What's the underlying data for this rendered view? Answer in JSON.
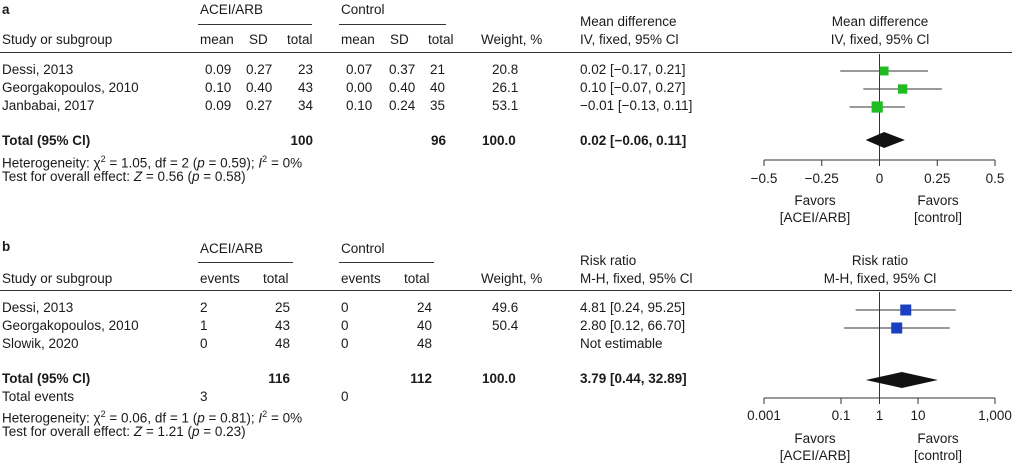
{
  "panels": [
    {
      "letter": "a",
      "group1_label": "ACEI/ARB",
      "group2_label": "Control",
      "study_header": "Study or subgroup",
      "group1_cols": [
        "mean",
        "SD",
        "total"
      ],
      "group2_cols": [
        "mean",
        "SD",
        "total"
      ],
      "weight_header": "Weight, %",
      "effect_header_1": "Mean difference",
      "effect_header_2": "IV, fixed, 95% Cl",
      "plot_header_1": "Mean difference",
      "plot_header_2": "IV, fixed, 95% Cl",
      "studies": [
        {
          "name": "Dessi, 2013",
          "g1": [
            "0.09",
            "0.27",
            "23"
          ],
          "g2": [
            "0.07",
            "0.37",
            "21"
          ],
          "weight": "20.8",
          "effect": "0.02 [−0.17, 0.21]"
        },
        {
          "name": "Georgakopoulos, 2010",
          "g1": [
            "0.10",
            "0.40",
            "43"
          ],
          "g2": [
            "0.00",
            "0.40",
            "40"
          ],
          "weight": "26.1",
          "effect": "0.10 [−0.07, 0.27]"
        },
        {
          "name": "Janbabai, 2017",
          "g1": [
            "0.09",
            "0.27",
            "34"
          ],
          "g2": [
            "0.10",
            "0.24",
            "35"
          ],
          "weight": "53.1",
          "effect": "−0.01 [−0.13, 0.11]"
        }
      ],
      "total": {
        "label": "Total (95% Cl)",
        "g1_total": "100",
        "g2_total": "96",
        "weight": "100.0",
        "effect": "0.02 [−0.06, 0.11]"
      },
      "heterogeneity": {
        "p1": "Heterogeneity: χ",
        "sup1": "2",
        "p2": " = 1.05, df = 2 (",
        "p_var": "p",
        "p3": " = 0.59); ",
        "i_var": "I",
        "sup2": "2",
        "p4": " = 0%"
      },
      "overall": {
        "p1": "Test for overall effect: ",
        "z_var": "Z",
        "p2": " = 0.56 (",
        "p_var": "p",
        "p3": " = 0.58)"
      },
      "favors_left_1": "Favors",
      "favors_left_2": "[ACEI/ARB]",
      "favors_right_1": "Favors",
      "favors_right_2": "[control]",
      "axis_ticks": [
        "−0.5",
        "−0.25",
        "0",
        "0.25",
        "0.5"
      ]
    },
    {
      "letter": "b",
      "group1_label": "ACEI/ARB",
      "group2_label": "Control",
      "study_header": "Study or subgroup",
      "group1_cols": [
        "events",
        "total"
      ],
      "group2_cols": [
        "events",
        "total"
      ],
      "weight_header": "Weight, %",
      "effect_header_1": "Risk ratio",
      "effect_header_2": "M-H, fixed, 95% Cl",
      "plot_header_1": "Risk ratio",
      "plot_header_2": "M-H, fixed, 95% Cl",
      "studies": [
        {
          "name": "Dessi, 2013",
          "g1": [
            "2",
            "25"
          ],
          "g2": [
            "0",
            "24"
          ],
          "weight": "49.6",
          "effect": "4.81 [0.24, 95.25]"
        },
        {
          "name": "Georgakopoulos, 2010",
          "g1": [
            "1",
            "43"
          ],
          "g2": [
            "0",
            "40"
          ],
          "weight": "50.4",
          "effect": "2.80 [0.12, 66.70]"
        },
        {
          "name": "Slowik, 2020",
          "g1": [
            "0",
            "48"
          ],
          "g2": [
            "0",
            "48"
          ],
          "weight": "",
          "effect": "Not estimable"
        }
      ],
      "total": {
        "label": "Total (95% Cl)",
        "g1_total": "116",
        "g2_total": "112",
        "weight": "100.0",
        "effect": "3.79 [0.44, 32.89]"
      },
      "total_events": {
        "label": "Total events",
        "g1": "3",
        "g2": "0"
      },
      "heterogeneity": {
        "p1": "Heterogeneity: χ",
        "sup1": "2",
        "p2": " = 0.06, df = 1 (",
        "p_var": "p",
        "p3": " = 0.81); ",
        "i_var": "I",
        "sup2": "2",
        "p4": " = 0%"
      },
      "overall": {
        "p1": "Test for overall effect: ",
        "z_var": "Z",
        "p2": " = 1.21 (",
        "p_var": "p",
        "p3": " = 0.23)"
      },
      "favors_left_1": "Favors",
      "favors_left_2": "[ACEI/ARB]",
      "favors_right_1": "Favors",
      "favors_right_2": "[control]",
      "axis_ticks": [
        "0.001",
        "0.1",
        "1",
        "10",
        "1,000"
      ]
    }
  ],
  "chart_data": [
    {
      "type": "scatter",
      "description_panel": "a",
      "scale": "linear",
      "xlim": [
        -0.5,
        0.5
      ],
      "reference_line": 0,
      "studies": [
        {
          "est": 0.02,
          "lo": -0.17,
          "hi": 0.21,
          "weight": 20.8
        },
        {
          "est": 0.1,
          "lo": -0.07,
          "hi": 0.27,
          "weight": 26.1
        },
        {
          "est": -0.01,
          "lo": -0.13,
          "hi": 0.11,
          "weight": 53.1
        }
      ],
      "total": {
        "est": 0.02,
        "lo": -0.06,
        "hi": 0.11
      },
      "marker_color": "#22bb22"
    },
    {
      "type": "scatter",
      "description_panel": "b",
      "scale": "log",
      "xlim": [
        0.001,
        1000
      ],
      "reference_line": 1,
      "studies": [
        {
          "est": 4.81,
          "lo": 0.24,
          "hi": 95.25,
          "weight": 49.6
        },
        {
          "est": 2.8,
          "lo": 0.12,
          "hi": 66.7,
          "weight": 50.4
        }
      ],
      "total": {
        "est": 3.79,
        "lo": 0.44,
        "hi": 32.89
      },
      "marker_color": "#1a3fc0"
    }
  ]
}
